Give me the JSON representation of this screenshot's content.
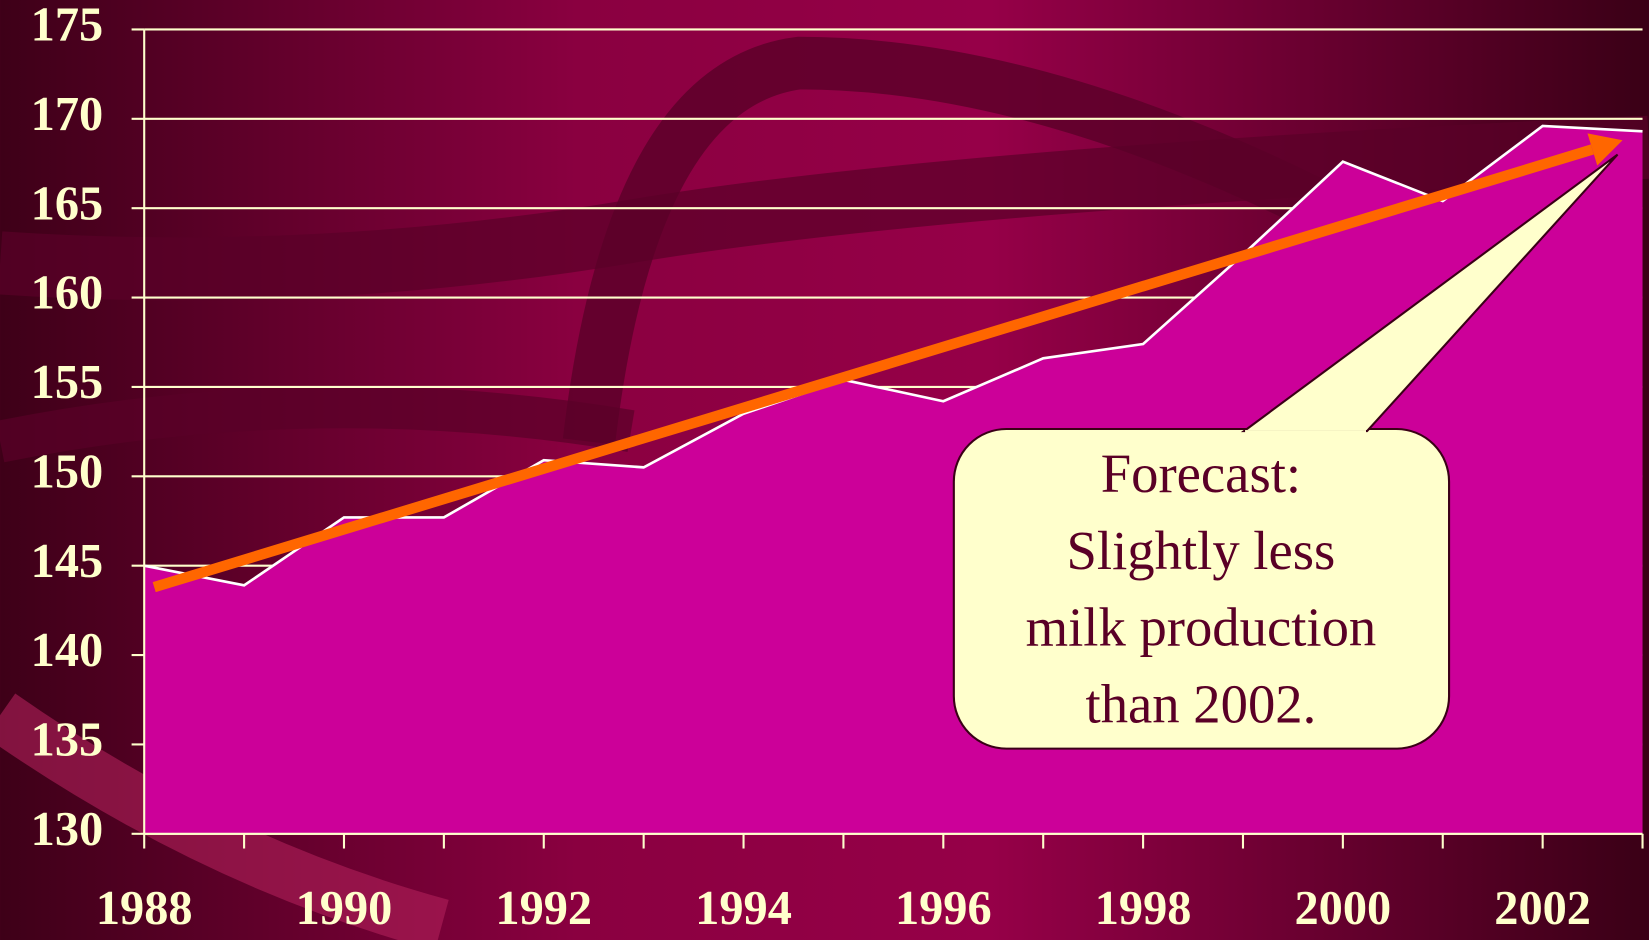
{
  "chart_data": {
    "type": "area",
    "x": [
      1988,
      1989,
      1990,
      1991,
      1992,
      1993,
      1994,
      1995,
      1996,
      1997,
      1998,
      1999,
      2000,
      2001,
      2002,
      2003
    ],
    "series": [
      {
        "color": "#cc0099",
        "line_color": "#ffffff",
        "values": [
          145.0,
          143.9,
          147.7,
          147.7,
          150.9,
          150.5,
          153.5,
          155.4,
          154.2,
          156.6,
          157.4,
          162.4,
          167.6,
          165.4,
          169.6,
          169.3
        ]
      }
    ],
    "xlim": [
      1988,
      2003
    ],
    "xticks": [
      1988,
      1990,
      1992,
      1994,
      1996,
      1998,
      2000,
      2002
    ],
    "xminorticks": [
      1989,
      1991,
      1993,
      1995,
      1997,
      1999,
      2001,
      2003
    ],
    "ylim": [
      130,
      175
    ],
    "yticks": [
      130,
      135,
      140,
      145,
      150,
      155,
      160,
      165,
      170,
      175
    ],
    "grid": true,
    "trend": {
      "from": [
        1988.1,
        143.8
      ],
      "to": [
        2002.8,
        168.8
      ],
      "color": "#ff6600"
    },
    "annotation": {
      "lines": [
        "Forecast:",
        "Slightly less",
        "milk production",
        "than 2002."
      ],
      "point": [
        2002.75,
        168.0
      ]
    }
  }
}
